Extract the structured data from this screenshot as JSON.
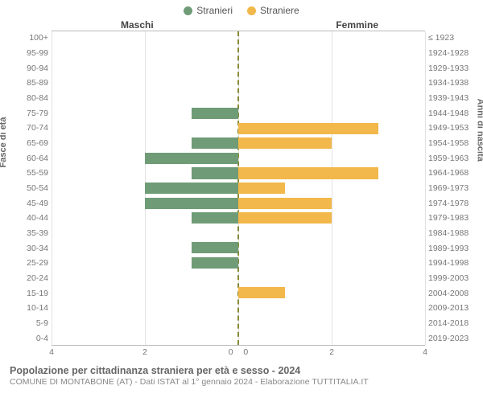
{
  "legend": {
    "male": {
      "label": "Stranieri",
      "color": "#6f9c76"
    },
    "female": {
      "label": "Straniere",
      "color": "#f2b84b"
    }
  },
  "top_titles": {
    "left": "Maschi",
    "right": "Femmine"
  },
  "axis_labels": {
    "left": "Fasce di età",
    "right": "Anni di nascita"
  },
  "chart": {
    "type": "population-pyramid",
    "x_max": 4,
    "x_ticks": [
      4,
      2,
      0,
      0,
      2,
      4
    ],
    "grid_color": "#e2e2e2",
    "center_line_color": "#8a8a3a",
    "border_color": "#bbbbbb",
    "background_color": "#ffffff",
    "bar_height_pct": 76,
    "age_groups": [
      {
        "age": "100+",
        "years": "≤ 1923",
        "m": 0,
        "f": 0
      },
      {
        "age": "95-99",
        "years": "1924-1928",
        "m": 0,
        "f": 0
      },
      {
        "age": "90-94",
        "years": "1929-1933",
        "m": 0,
        "f": 0
      },
      {
        "age": "85-89",
        "years": "1934-1938",
        "m": 0,
        "f": 0
      },
      {
        "age": "80-84",
        "years": "1939-1943",
        "m": 0,
        "f": 0
      },
      {
        "age": "75-79",
        "years": "1944-1948",
        "m": 1,
        "f": 0
      },
      {
        "age": "70-74",
        "years": "1949-1953",
        "m": 0,
        "f": 3
      },
      {
        "age": "65-69",
        "years": "1954-1958",
        "m": 1,
        "f": 2
      },
      {
        "age": "60-64",
        "years": "1959-1963",
        "m": 2,
        "f": 0
      },
      {
        "age": "55-59",
        "years": "1964-1968",
        "m": 1,
        "f": 3
      },
      {
        "age": "50-54",
        "years": "1969-1973",
        "m": 2,
        "f": 1
      },
      {
        "age": "45-49",
        "years": "1974-1978",
        "m": 2,
        "f": 2
      },
      {
        "age": "40-44",
        "years": "1979-1983",
        "m": 1,
        "f": 2
      },
      {
        "age": "35-39",
        "years": "1984-1988",
        "m": 0,
        "f": 0
      },
      {
        "age": "30-34",
        "years": "1989-1993",
        "m": 1,
        "f": 0
      },
      {
        "age": "25-29",
        "years": "1994-1998",
        "m": 1,
        "f": 0
      },
      {
        "age": "20-24",
        "years": "1999-2003",
        "m": 0,
        "f": 0
      },
      {
        "age": "15-19",
        "years": "2004-2008",
        "m": 0,
        "f": 1
      },
      {
        "age": "10-14",
        "years": "2009-2013",
        "m": 0,
        "f": 0
      },
      {
        "age": "5-9",
        "years": "2014-2018",
        "m": 0,
        "f": 0
      },
      {
        "age": "0-4",
        "years": "2019-2023",
        "m": 0,
        "f": 0
      }
    ]
  },
  "footer": {
    "title": "Popolazione per cittadinanza straniera per età e sesso - 2024",
    "subtitle": "COMUNE DI MONTABONE (AT) - Dati ISTAT al 1° gennaio 2024 - Elaborazione TUTTITALIA.IT"
  }
}
